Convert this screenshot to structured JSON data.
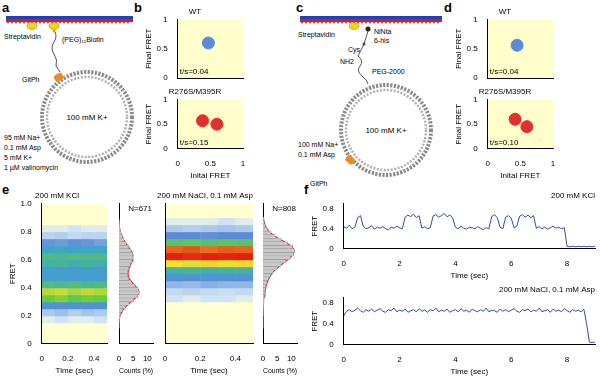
{
  "figure": {
    "panel_labels": [
      "a",
      "b",
      "c",
      "d",
      "e",
      "f"
    ],
    "a": {
      "streptavidin": "Streptavidin",
      "linker": "(PEG)₁₁Biotin",
      "protein": "GltPh",
      "inside": "100 mM K+",
      "conditions": [
        "95 mM Na+",
        "0.1 mM Asp",
        "5 mM K+",
        "1 µM valinomycin"
      ]
    },
    "c": {
      "streptavidin": "Streptavidin",
      "ninta": "NiNta",
      "his": "6-his",
      "cys": "Cys",
      "nh2": "NH2",
      "peg": "PEG-2000",
      "protein": "GltPh",
      "inside": "100 mM K+",
      "conditions": [
        "100 mM Na+",
        "0.1 mM Asp"
      ]
    }
  },
  "chart_data": [
    {
      "type": "scatter",
      "title": "WT",
      "ylabel": "Final FRET",
      "xlim": [
        0,
        1
      ],
      "ylim": [
        0,
        1
      ],
      "xticks": [
        0,
        0.5,
        1
      ],
      "yticks": [
        0,
        0.5,
        1
      ],
      "tick_labels": "y",
      "grid": false,
      "marker": "circle",
      "annotation": "t/s=0.04",
      "series": [
        {
          "color": "#5b8ad8",
          "x": [
            0.47
          ],
          "y": [
            0.6
          ]
        }
      ]
    },
    {
      "type": "scatter",
      "title": "R276S/M395R",
      "xlabel": "Inital FRET",
      "ylabel": "Final FRET",
      "xlim": [
        0,
        1
      ],
      "ylim": [
        0,
        1
      ],
      "xticks": [
        0,
        0.5,
        1
      ],
      "yticks": [
        0,
        0.5,
        1
      ],
      "grid": false,
      "marker": "circle",
      "annotation": "t/s=0.15",
      "series": [
        {
          "color": "#e03030",
          "x": [
            0.38,
            0.6
          ],
          "y": [
            0.57,
            0.5
          ]
        }
      ]
    },
    {
      "type": "scatter",
      "title": "WT",
      "ylabel": "Final FRET",
      "xlim": [
        0,
        1
      ],
      "ylim": [
        0,
        1
      ],
      "xticks": [
        0,
        0.5,
        1
      ],
      "yticks": [
        0,
        0.5,
        1
      ],
      "tick_labels": "y",
      "grid": false,
      "marker": "circle",
      "annotation": "t/s=0.04",
      "series": [
        {
          "color": "#5b8ad8",
          "x": [
            0.45
          ],
          "y": [
            0.56
          ]
        }
      ]
    },
    {
      "type": "scatter",
      "title": "R276S/M395R",
      "xlabel": "Inital FRET",
      "ylabel": "Final FRET",
      "xlim": [
        0,
        1
      ],
      "ylim": [
        0,
        1
      ],
      "xticks": [
        0,
        0.5,
        1
      ],
      "yticks": [
        0,
        0.5,
        1
      ],
      "grid": false,
      "marker": "circle",
      "annotation": "t/s=0.10",
      "series": [
        {
          "color": "#e03030",
          "x": [
            0.42,
            0.6
          ],
          "y": [
            0.6,
            0.45
          ]
        }
      ]
    },
    {
      "type": "heatmap",
      "title": "200 mM KCl",
      "xlabel": "Time (sec)",
      "ylabel": "FRET",
      "xlim": [
        0,
        0.5
      ],
      "ylim": [
        0,
        1
      ],
      "xticks": [
        0,
        0.2,
        0.4
      ],
      "yticks": [
        0,
        0.2,
        0.4,
        0.6,
        0.8,
        {
          "value": 1,
          "label": "1.0"
        }
      ],
      "grid": false,
      "x_bins": [
        0,
        0.1,
        0.2,
        0.3,
        0.4,
        0.5
      ],
      "y_bins": [
        0,
        0.05,
        0.1,
        0.15,
        0.2,
        0.25,
        0.3,
        0.35,
        0.4,
        0.45,
        0.5,
        0.55,
        0.6,
        0.65,
        0.7,
        0.75,
        0.8,
        0.85,
        0.9,
        0.95,
        1
      ],
      "cell_range": [
        0,
        1
      ],
      "cells": [
        [
          0,
          0,
          0,
          0,
          0
        ],
        [
          0,
          0,
          0,
          0,
          0
        ],
        [
          0,
          0,
          0,
          0,
          0
        ],
        [
          0.02,
          0.03,
          0.02,
          0.02,
          0.03
        ],
        [
          0.08,
          0.1,
          0.07,
          0.09,
          0.08
        ],
        [
          0.26,
          0.23,
          0.27,
          0.24,
          0.25
        ],
        [
          0.55,
          0.58,
          0.52,
          0.56,
          0.54
        ],
        [
          0.64,
          0.66,
          0.62,
          0.65,
          0.63
        ],
        [
          0.46,
          0.44,
          0.47,
          0.43,
          0.45
        ],
        [
          0.3,
          0.32,
          0.29,
          0.31,
          0.3
        ],
        [
          0.31,
          0.29,
          0.3,
          0.32,
          0.3
        ],
        [
          0.4,
          0.42,
          0.38,
          0.41,
          0.39
        ],
        [
          0.45,
          0.43,
          0.46,
          0.44,
          0.45
        ],
        [
          0.35,
          0.37,
          0.34,
          0.36,
          0.35
        ],
        [
          0.18,
          0.17,
          0.19,
          0.18,
          0.16
        ],
        [
          0.06,
          0.07,
          0.05,
          0.06,
          0.06
        ],
        [
          0.02,
          0.02,
          0.03,
          0.02,
          0.02
        ],
        [
          0,
          0,
          0,
          0,
          0
        ],
        [
          0,
          0,
          0,
          0,
          0
        ],
        [
          0,
          0,
          0,
          0,
          0
        ]
      ]
    },
    {
      "type": "histogram",
      "orientation": "horizontal",
      "xlabel": "Counts (%)",
      "xlim": [
        0,
        12
      ],
      "xticks": [
        0,
        5,
        10
      ],
      "ylim": [
        0,
        1
      ],
      "tick_labels": "x",
      "grid": false,
      "annotation": "N=671",
      "bins": [
        0.1,
        0.125,
        0.15,
        0.175,
        0.2,
        0.225,
        0.25,
        0.275,
        0.3,
        0.325,
        0.35,
        0.375,
        0.4,
        0.425,
        0.45,
        0.475,
        0.5,
        0.525,
        0.55,
        0.575,
        0.6,
        0.625,
        0.65,
        0.675,
        0.7,
        0.725,
        0.75,
        0.775,
        0.8,
        0.825,
        0.85,
        0.875,
        0.9
      ],
      "series": [
        {
          "type": "bar",
          "color": "#c8c8c8",
          "values": [
            0,
            0,
            0.1,
            0.3,
            0.6,
            1.2,
            2.2,
            3.5,
            5.2,
            6.6,
            7.2,
            6.8,
            5.6,
            4.3,
            3.4,
            3.0,
            3.0,
            3.4,
            4.0,
            4.6,
            4.9,
            4.8,
            4.2,
            3.4,
            2.5,
            1.7,
            1.1,
            0.7,
            0.4,
            0.2,
            0.1,
            0
          ]
        },
        {
          "type": "line",
          "color": "#e02020",
          "values": [
            0,
            0.02,
            0.1,
            0.3,
            0.7,
            1.3,
            2.3,
            3.6,
            5.1,
            6.4,
            7.0,
            6.7,
            5.7,
            4.5,
            3.6,
            3.2,
            3.2,
            3.6,
            4.1,
            4.6,
            4.9,
            4.8,
            4.2,
            3.4,
            2.5,
            1.7,
            1.1,
            0.6,
            0.3,
            0.15,
            0.06,
            0.02
          ]
        }
      ]
    },
    {
      "type": "heatmap",
      "title": "200 mM NaCl, 0.1 mM Asp",
      "xlabel": "Time (sec)",
      "xlim": [
        0,
        0.5
      ],
      "ylim": [
        0,
        1
      ],
      "xticks": [
        0,
        0.2,
        0.4
      ],
      "yticks": [
        0,
        0.2,
        0.4,
        0.6,
        0.8,
        {
          "value": 1,
          "label": "1.0"
        }
      ],
      "tick_labels": "x",
      "grid": false,
      "x_bins": [
        0,
        0.1,
        0.2,
        0.3,
        0.4,
        0.5
      ],
      "y_bins": [
        0,
        0.05,
        0.1,
        0.15,
        0.2,
        0.25,
        0.3,
        0.35,
        0.4,
        0.45,
        0.5,
        0.55,
        0.6,
        0.65,
        0.7,
        0.75,
        0.8,
        0.85,
        0.9,
        0.95,
        1
      ],
      "cell_range": [
        0,
        1
      ],
      "cells": [
        [
          0,
          0,
          0,
          0,
          0
        ],
        [
          0,
          0,
          0,
          0,
          0
        ],
        [
          0,
          0,
          0,
          0,
          0
        ],
        [
          0,
          0,
          0,
          0,
          0
        ],
        [
          0,
          0,
          0,
          0,
          0
        ],
        [
          0,
          0,
          0,
          0,
          0
        ],
        [
          0.03,
          0.02,
          0.03,
          0.03,
          0.02
        ],
        [
          0.05,
          0.06,
          0.05,
          0.04,
          0.05
        ],
        [
          0.12,
          0.11,
          0.13,
          0.12,
          0.12
        ],
        [
          0.25,
          0.24,
          0.26,
          0.25,
          0.23
        ],
        [
          0.4,
          0.42,
          0.39,
          0.41,
          0.4
        ],
        [
          0.7,
          0.68,
          0.72,
          0.69,
          0.71
        ],
        [
          1,
          0.98,
          1,
          0.99,
          1
        ],
        [
          0.9,
          0.92,
          0.88,
          0.91,
          0.9
        ],
        [
          0.5,
          0.52,
          0.49,
          0.51,
          0.5
        ],
        [
          0.2,
          0.21,
          0.19,
          0.2,
          0.2
        ],
        [
          0.08,
          0.07,
          0.08,
          0.09,
          0.08
        ],
        [
          0.02,
          0.02,
          0.02,
          0.03,
          0.02
        ],
        [
          0,
          0,
          0,
          0,
          0
        ],
        [
          0,
          0,
          0,
          0,
          0
        ]
      ]
    },
    {
      "type": "histogram",
      "orientation": "horizontal",
      "xlabel": "Counts (%)",
      "xlim": [
        0,
        12
      ],
      "xticks": [
        0,
        5,
        10
      ],
      "ylim": [
        0,
        1
      ],
      "tick_labels": "x",
      "grid": false,
      "annotation": "N=808",
      "bins": [
        0.1,
        0.125,
        0.15,
        0.175,
        0.2,
        0.225,
        0.25,
        0.275,
        0.3,
        0.325,
        0.35,
        0.375,
        0.4,
        0.425,
        0.45,
        0.475,
        0.5,
        0.525,
        0.55,
        0.575,
        0.6,
        0.625,
        0.65,
        0.675,
        0.7,
        0.725,
        0.75,
        0.775,
        0.8,
        0.825,
        0.85,
        0.875,
        0.9
      ],
      "series": [
        {
          "type": "bar",
          "color": "#c8c8c8",
          "values": [
            0,
            0,
            0,
            0,
            0.1,
            0.1,
            0.2,
            0.3,
            0.4,
            0.5,
            0.6,
            0.8,
            1.0,
            1.4,
            1.9,
            2.6,
            3.6,
            4.9,
            6.4,
            8.0,
            9.6,
            10.8,
            11.2,
            10.4,
            8.6,
            6.4,
            4.3,
            2.7,
            1.5,
            0.8,
            0.4,
            0.2
          ]
        },
        {
          "type": "line",
          "color": "#e02020",
          "values": [
            0,
            0,
            0,
            0,
            0.05,
            0.1,
            0.15,
            0.25,
            0.35,
            0.5,
            0.65,
            0.85,
            1.1,
            1.5,
            2.0,
            2.7,
            3.7,
            5.0,
            6.5,
            8.1,
            9.6,
            10.7,
            11.0,
            10.3,
            8.6,
            6.4,
            4.3,
            2.7,
            1.5,
            0.8,
            0.4,
            0.2
          ]
        }
      ]
    },
    {
      "type": "line",
      "title": "200 mM KCl",
      "xlabel": "Time (sec)",
      "ylabel": "FRET",
      "xlim": [
        0,
        9
      ],
      "ylim": [
        0,
        0.9
      ],
      "xticks": [
        0,
        2,
        4,
        6,
        8
      ],
      "yticks": [
        0,
        0.4,
        0.8
      ],
      "grid": false,
      "x": [
        0,
        0.1,
        0.2,
        0.3,
        0.4,
        0.5,
        0.6,
        0.7,
        0.8,
        0.9,
        1,
        1.1,
        1.2,
        1.3,
        1.4,
        1.5,
        1.6,
        1.7,
        1.8,
        1.9,
        2,
        2.1,
        2.2,
        2.3,
        2.4,
        2.5,
        2.6,
        2.7,
        2.8,
        2.9,
        3,
        3.1,
        3.2,
        3.3,
        3.4,
        3.5,
        3.6,
        3.7,
        3.8,
        3.9,
        4,
        4.1,
        4.2,
        4.3,
        4.4,
        4.5,
        4.6,
        4.7,
        4.8,
        4.9,
        5,
        5.1,
        5.2,
        5.3,
        5.4,
        5.5,
        5.6,
        5.7,
        5.8,
        5.9,
        6,
        6.1,
        6.2,
        6.3,
        6.4,
        6.5,
        6.6,
        6.7,
        6.8,
        6.9,
        7,
        7.1,
        7.2,
        7.3,
        7.4,
        7.5,
        7.6,
        7.7,
        7.8,
        7.9,
        8,
        8.1,
        8.2,
        8.3,
        8.4,
        8.5,
        8.6,
        8.7,
        8.8,
        8.9,
        9
      ],
      "series": [
        {
          "color": "#2f4fa0",
          "line_style": "solid",
          "values": [
            0.44,
            0.41,
            0.47,
            0.4,
            0.43,
            0.62,
            0.66,
            0.45,
            0.4,
            0.42,
            0.46,
            0.39,
            0.43,
            0.41,
            0.44,
            0.4,
            0.38,
            0.43,
            0.41,
            0.45,
            0.42,
            0.4,
            0.63,
            0.67,
            0.64,
            0.69,
            0.62,
            0.66,
            0.41,
            0.44,
            0.4,
            0.42,
            0.65,
            0.68,
            0.63,
            0.66,
            0.7,
            0.64,
            0.67,
            0.62,
            0.43,
            0.4,
            0.45,
            0.41,
            0.39,
            0.43,
            0.42,
            0.4,
            0.44,
            0.41,
            0.38,
            0.42,
            0.4,
            0.64,
            0.68,
            0.62,
            0.43,
            0.4,
            0.63,
            0.66,
            0.61,
            0.42,
            0.45,
            0.65,
            0.68,
            0.63,
            0.67,
            0.62,
            0.66,
            0.41,
            0.44,
            0.4,
            0.43,
            0.39,
            0.42,
            0.45,
            0.41,
            0.43,
            0.4,
            0.42,
            0.05,
            0.04,
            0.05,
            0.04,
            0.05,
            0.04,
            0.05,
            0.04,
            0.05,
            0.04,
            0.05
          ]
        }
      ]
    },
    {
      "type": "line",
      "title": "200 mM NaCl, 0.1 mM Asp",
      "xlabel": "Time (sec)",
      "ylabel": "FRET",
      "xlim": [
        0,
        9
      ],
      "ylim": [
        0,
        0.9
      ],
      "xticks": [
        0,
        2,
        4,
        6,
        8
      ],
      "yticks": [
        0,
        0.4,
        0.8
      ],
      "grid": false,
      "x": [
        0,
        0.1,
        0.2,
        0.3,
        0.4,
        0.5,
        0.6,
        0.7,
        0.8,
        0.9,
        1,
        1.1,
        1.2,
        1.3,
        1.4,
        1.5,
        1.6,
        1.7,
        1.8,
        1.9,
        2,
        2.1,
        2.2,
        2.3,
        2.4,
        2.5,
        2.6,
        2.7,
        2.8,
        2.9,
        3,
        3.1,
        3.2,
        3.3,
        3.4,
        3.5,
        3.6,
        3.7,
        3.8,
        3.9,
        4,
        4.1,
        4.2,
        4.3,
        4.4,
        4.5,
        4.6,
        4.7,
        4.8,
        4.9,
        5,
        5.1,
        5.2,
        5.3,
        5.4,
        5.5,
        5.6,
        5.7,
        5.8,
        5.9,
        6,
        6.1,
        6.2,
        6.3,
        6.4,
        6.5,
        6.6,
        6.7,
        6.8,
        6.9,
        7,
        7.1,
        7.2,
        7.3,
        7.4,
        7.5,
        7.6,
        7.7,
        7.8,
        7.9,
        8,
        8.1,
        8.2,
        8.3,
        8.4,
        8.5,
        8.6,
        8.7,
        8.8,
        8.9,
        9
      ],
      "series": [
        {
          "color": "#2f4fa0",
          "line_style": "solid",
          "values": [
            0.55,
            0.64,
            0.67,
            0.63,
            0.66,
            0.7,
            0.65,
            0.62,
            0.67,
            0.64,
            0.68,
            0.63,
            0.66,
            0.69,
            0.64,
            0.62,
            0.67,
            0.65,
            0.7,
            0.63,
            0.66,
            0.64,
            0.68,
            0.62,
            0.65,
            0.67,
            0.63,
            0.69,
            0.64,
            0.66,
            0.62,
            0.67,
            0.65,
            0.7,
            0.63,
            0.66,
            0.64,
            0.68,
            0.62,
            0.65,
            0.67,
            0.63,
            0.69,
            0.64,
            0.66,
            0.62,
            0.68,
            0.65,
            0.63,
            0.67,
            0.64,
            0.7,
            0.63,
            0.66,
            0.65,
            0.62,
            0.68,
            0.64,
            0.67,
            0.63,
            0.66,
            0.69,
            0.64,
            0.62,
            0.67,
            0.65,
            0.68,
            0.63,
            0.66,
            0.64,
            0.7,
            0.63,
            0.65,
            0.67,
            0.62,
            0.68,
            0.64,
            0.66,
            0.63,
            0.69,
            0.65,
            0.62,
            0.67,
            0.64,
            0.66,
            0.63,
            0.68,
            0.4,
            0.05,
            0.04,
            0.05
          ]
        }
      ]
    }
  ]
}
